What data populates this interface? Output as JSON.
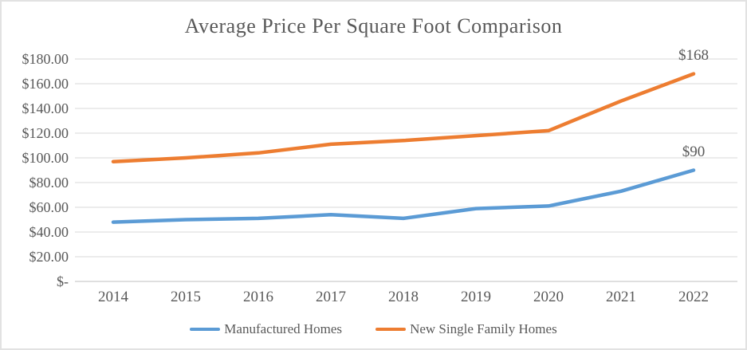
{
  "chart_data": {
    "type": "line",
    "title": "Average Price Per Square Foot Comparison",
    "categories": [
      "2014",
      "2015",
      "2016",
      "2017",
      "2018",
      "2019",
      "2020",
      "2021",
      "2022"
    ],
    "series": [
      {
        "name": "Manufactured Homes",
        "color": "#5B9BD5",
        "values": [
          48,
          50,
          51,
          54,
          51,
          59,
          61,
          73,
          90
        ],
        "end_label": "$90"
      },
      {
        "name": "New Single Family Homes",
        "color": "#ED7D31",
        "values": [
          97,
          100,
          104,
          111,
          114,
          118,
          122,
          146,
          168
        ],
        "end_label": "$168"
      }
    ],
    "xlabel": "",
    "ylabel": "",
    "ylim": [
      0,
      180
    ],
    "ytick_step": 20,
    "ytick_labels": [
      "$-",
      "$20.00",
      "$40.00",
      "$60.00",
      "$80.00",
      "$100.00",
      "$120.00",
      "$140.00",
      "$160.00",
      "$180.00"
    ],
    "grid": true,
    "legend_position": "bottom"
  },
  "palette": {
    "text": "#595959",
    "gridline": "#D9D9D9",
    "axis_line": "#BFBFBF",
    "background": "#FFFFFF"
  }
}
